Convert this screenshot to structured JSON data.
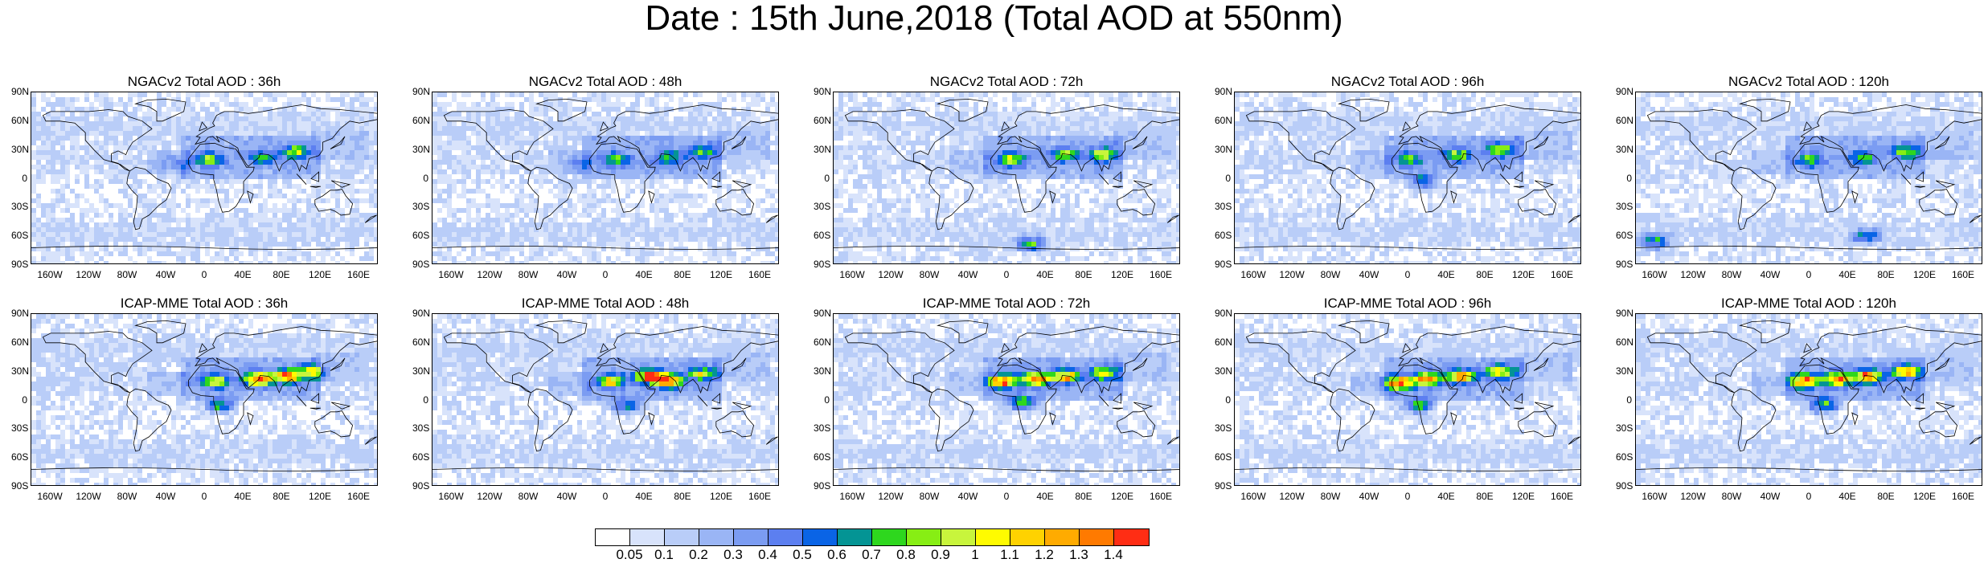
{
  "title": "Date : 15th June,2018 (Total AOD at 550nm)",
  "chart_data": [
    {
      "type": "heatmap",
      "title": "NGACv2 Total AOD : 36h",
      "model": "NGACv2",
      "forecast_hour": 36,
      "ylim": [
        -90,
        90
      ],
      "xlim": [
        -180,
        180
      ],
      "hotspots": [
        {
          "lon": 5,
          "lat": 20,
          "level": 0.8
        },
        {
          "lon": 60,
          "lat": 22,
          "level": 0.7
        },
        {
          "lon": 95,
          "lat": 28,
          "level": 0.8
        },
        {
          "lon": -30,
          "lat": 15,
          "level": 0.4
        }
      ]
    },
    {
      "type": "heatmap",
      "title": "NGACv2 Total AOD : 48h",
      "model": "NGACv2",
      "forecast_hour": 48,
      "ylim": [
        -90,
        90
      ],
      "xlim": [
        -180,
        180
      ],
      "hotspots": [
        {
          "lon": 10,
          "lat": 20,
          "level": 0.7
        },
        {
          "lon": 65,
          "lat": 22,
          "level": 0.7
        },
        {
          "lon": 100,
          "lat": 28,
          "level": 0.8
        },
        {
          "lon": -30,
          "lat": 15,
          "level": 0.4
        }
      ]
    },
    {
      "type": "heatmap",
      "title": "NGACv2 Total AOD : 72h",
      "model": "NGACv2",
      "forecast_hour": 72,
      "ylim": [
        -90,
        90
      ],
      "xlim": [
        -180,
        180
      ],
      "hotspots": [
        {
          "lon": 5,
          "lat": 20,
          "level": 0.9
        },
        {
          "lon": 60,
          "lat": 25,
          "level": 0.8
        },
        {
          "lon": 100,
          "lat": 25,
          "level": 0.9
        },
        {
          "lon": 25,
          "lat": -68,
          "level": 0.8
        }
      ]
    },
    {
      "type": "heatmap",
      "title": "NGACv2 Total AOD : 96h",
      "model": "NGACv2",
      "forecast_hour": 96,
      "ylim": [
        -90,
        90
      ],
      "xlim": [
        -180,
        180
      ],
      "hotspots": [
        {
          "lon": 0,
          "lat": 20,
          "level": 0.8
        },
        {
          "lon": 50,
          "lat": 25,
          "level": 0.8
        },
        {
          "lon": 95,
          "lat": 30,
          "level": 0.9
        },
        {
          "lon": 15,
          "lat": -3,
          "level": 0.7
        }
      ]
    },
    {
      "type": "heatmap",
      "title": "NGACv2 Total AOD : 120h",
      "model": "NGACv2",
      "forecast_hour": 120,
      "ylim": [
        -90,
        90
      ],
      "xlim": [
        -180,
        180
      ],
      "hotspots": [
        {
          "lon": 0,
          "lat": 20,
          "level": 0.7
        },
        {
          "lon": 55,
          "lat": 22,
          "level": 0.7
        },
        {
          "lon": 100,
          "lat": 28,
          "level": 0.9
        },
        {
          "lon": -160,
          "lat": -65,
          "level": 0.8
        },
        {
          "lon": 60,
          "lat": -60,
          "level": 0.7
        }
      ]
    },
    {
      "type": "heatmap",
      "title": "ICAP-MME Total AOD : 36h",
      "model": "ICAP-MME",
      "forecast_hour": 36,
      "ylim": [
        -90,
        90
      ],
      "xlim": [
        -180,
        180
      ],
      "hotspots": [
        {
          "lon": 10,
          "lat": 20,
          "level": 1.0
        },
        {
          "lon": 55,
          "lat": 22,
          "level": 1.4
        },
        {
          "lon": 85,
          "lat": 25,
          "level": 1.3
        },
        {
          "lon": 110,
          "lat": 30,
          "level": 1.0
        },
        {
          "lon": 15,
          "lat": -5,
          "level": 0.8
        }
      ]
    },
    {
      "type": "heatmap",
      "title": "ICAP-MME Total AOD : 48h",
      "model": "ICAP-MME",
      "forecast_hour": 48,
      "ylim": [
        -90,
        90
      ],
      "xlim": [
        -180,
        180
      ],
      "hotspots": [
        {
          "lon": 5,
          "lat": 20,
          "level": 1.0
        },
        {
          "lon": 45,
          "lat": 25,
          "level": 1.3
        },
        {
          "lon": 65,
          "lat": 20,
          "level": 1.4
        },
        {
          "lon": 100,
          "lat": 28,
          "level": 0.9
        },
        {
          "lon": 20,
          "lat": -5,
          "level": 0.8
        }
      ]
    },
    {
      "type": "heatmap",
      "title": "ICAP-MME Total AOD : 72h",
      "model": "ICAP-MME",
      "forecast_hour": 72,
      "ylim": [
        -90,
        90
      ],
      "xlim": [
        -180,
        180
      ],
      "hotspots": [
        {
          "lon": -5,
          "lat": 20,
          "level": 1.4
        },
        {
          "lon": 30,
          "lat": 22,
          "level": 1.3
        },
        {
          "lon": 60,
          "lat": 25,
          "level": 1.2
        },
        {
          "lon": 100,
          "lat": 28,
          "level": 1.0
        },
        {
          "lon": 15,
          "lat": -2,
          "level": 0.9
        }
      ]
    },
    {
      "type": "heatmap",
      "title": "ICAP-MME Total AOD : 96h",
      "model": "ICAP-MME",
      "forecast_hour": 96,
      "ylim": [
        -90,
        90
      ],
      "xlim": [
        -180,
        180
      ],
      "hotspots": [
        {
          "lon": -10,
          "lat": 18,
          "level": 1.4
        },
        {
          "lon": 20,
          "lat": 22,
          "level": 1.3
        },
        {
          "lon": 55,
          "lat": 25,
          "level": 1.2
        },
        {
          "lon": 95,
          "lat": 30,
          "level": 1.1
        },
        {
          "lon": 10,
          "lat": -5,
          "level": 0.9
        }
      ]
    },
    {
      "type": "heatmap",
      "title": "ICAP-MME Total AOD : 120h",
      "model": "ICAP-MME",
      "forecast_hour": 120,
      "ylim": [
        -90,
        90
      ],
      "xlim": [
        -180,
        180
      ],
      "hotspots": [
        {
          "lon": -5,
          "lat": 20,
          "level": 1.4
        },
        {
          "lon": 30,
          "lat": 22,
          "level": 1.3
        },
        {
          "lon": 60,
          "lat": 25,
          "level": 1.3
        },
        {
          "lon": 100,
          "lat": 30,
          "level": 1.2
        },
        {
          "lon": 15,
          "lat": -5,
          "level": 0.9
        }
      ]
    }
  ],
  "lat_ticks": [
    "90N",
    "60N",
    "30N",
    "0",
    "30S",
    "60S",
    "90S"
  ],
  "lon_ticks": [
    "160W",
    "120W",
    "80W",
    "40W",
    "0",
    "40E",
    "80E",
    "120E",
    "160E"
  ],
  "colorbar": {
    "colors": [
      "#ffffff",
      "#d8e3fb",
      "#b9cdf8",
      "#9ab5f5",
      "#7b9cf2",
      "#5c7ff0",
      "#0a64e6",
      "#049494",
      "#2ed71e",
      "#87ee14",
      "#c8f53c",
      "#fffb00",
      "#ffd200",
      "#ffab00",
      "#ff7a00",
      "#ff2d14"
    ],
    "labels": [
      "0.05",
      "0.1",
      "0.2",
      "0.3",
      "0.4",
      "0.5",
      "0.6",
      "0.7",
      "0.8",
      "0.9",
      "1",
      "1.1",
      "1.2",
      "1.3",
      "1.4"
    ]
  }
}
